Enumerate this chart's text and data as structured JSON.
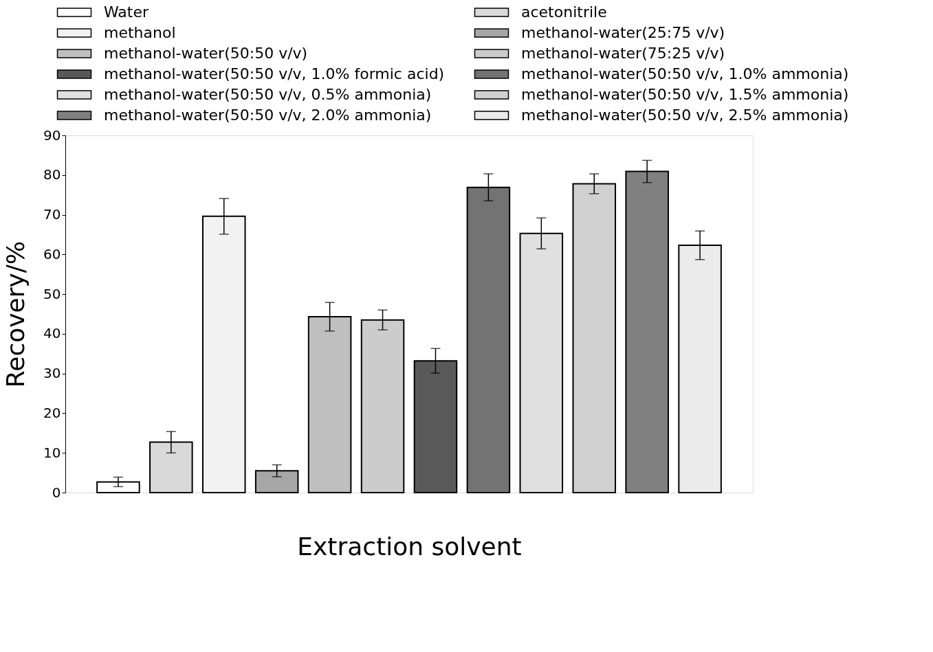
{
  "chart_data": {
    "type": "bar",
    "xlabel": "Extraction solvent",
    "ylabel": "Recovery/%",
    "categories": [
      null,
      null,
      null,
      null,
      null,
      null,
      null,
      null,
      null,
      null,
      null,
      null
    ],
    "series": [
      {
        "name": "Water",
        "color": "#ffffff",
        "values": [
          2.7,
          null,
          null,
          null,
          null,
          null,
          null,
          null,
          null,
          null,
          null,
          null
        ],
        "errors": [
          1.2,
          null,
          null,
          null,
          null,
          null,
          null,
          null,
          null,
          null,
          null,
          null
        ]
      },
      {
        "name": "acetonitrile",
        "color": "#d9d9d9",
        "values": [
          null,
          12.7,
          null,
          null,
          null,
          null,
          null,
          null,
          null,
          null,
          null,
          null
        ],
        "errors": [
          null,
          2.7,
          null,
          null,
          null,
          null,
          null,
          null,
          null,
          null,
          null,
          null
        ]
      },
      {
        "name": "methanol",
        "color": "#f2f2f2",
        "values": [
          null,
          null,
          69.6,
          null,
          null,
          null,
          null,
          null,
          null,
          null,
          null,
          null
        ],
        "errors": [
          null,
          null,
          4.5,
          null,
          null,
          null,
          null,
          null,
          null,
          null,
          null,
          null
        ]
      },
      {
        "name": "methanol-water(25:75 v/v)",
        "color": "#a6a6a6",
        "values": [
          null,
          null,
          null,
          5.5,
          null,
          null,
          null,
          null,
          null,
          null,
          null,
          null
        ],
        "errors": [
          null,
          null,
          null,
          1.5,
          null,
          null,
          null,
          null,
          null,
          null,
          null,
          null
        ]
      },
      {
        "name": "methanol-water(50:50 v/v)",
        "color": "#bfbfbf",
        "values": [
          null,
          null,
          null,
          null,
          44.3,
          null,
          null,
          null,
          null,
          null,
          null,
          null
        ],
        "errors": [
          null,
          null,
          null,
          null,
          3.6,
          null,
          null,
          null,
          null,
          null,
          null,
          null
        ]
      },
      {
        "name": "methanol-water(75:25 v/v)",
        "color": "#cccccc",
        "values": [
          null,
          null,
          null,
          null,
          null,
          43.5,
          null,
          null,
          null,
          null,
          null,
          null
        ],
        "errors": [
          null,
          null,
          null,
          null,
          null,
          2.5,
          null,
          null,
          null,
          null,
          null,
          null
        ]
      },
      {
        "name": "methanol-water(50:50 v/v, 1.0% formic acid)",
        "color": "#595959",
        "values": [
          null,
          null,
          null,
          null,
          null,
          null,
          33.2,
          null,
          null,
          null,
          null,
          null
        ],
        "errors": [
          null,
          null,
          null,
          null,
          null,
          null,
          3.1,
          null,
          null,
          null,
          null,
          null
        ]
      },
      {
        "name": "methanol-water(50:50 v/v, 1.0% ammonia)",
        "color": "#737373",
        "values": [
          null,
          null,
          null,
          null,
          null,
          null,
          null,
          76.9,
          null,
          null,
          null,
          null
        ],
        "errors": [
          null,
          null,
          null,
          null,
          null,
          null,
          null,
          3.4,
          null,
          null,
          null,
          null
        ]
      },
      {
        "name": "methanol-water(50:50 v/v, 0.5% ammonia)",
        "color": "#e0e0e0",
        "values": [
          null,
          null,
          null,
          null,
          null,
          null,
          null,
          null,
          65.3,
          null,
          null,
          null
        ],
        "errors": [
          null,
          null,
          null,
          null,
          null,
          null,
          null,
          null,
          3.9,
          null,
          null,
          null
        ]
      },
      {
        "name": "methanol-water(50:50 v/v, 1.5% ammonia)",
        "color": "#d0d0d0",
        "values": [
          null,
          null,
          null,
          null,
          null,
          null,
          null,
          null,
          null,
          77.8,
          null,
          null
        ],
        "errors": [
          null,
          null,
          null,
          null,
          null,
          null,
          null,
          null,
          null,
          2.5,
          null,
          null
        ]
      },
      {
        "name": "methanol-water(50:50 v/v, 2.0% ammonia)",
        "color": "#808080",
        "values": [
          null,
          null,
          null,
          null,
          null,
          null,
          null,
          null,
          null,
          null,
          80.9,
          null
        ],
        "errors": [
          null,
          null,
          null,
          null,
          null,
          null,
          null,
          null,
          null,
          null,
          2.8,
          null
        ]
      },
      {
        "name": "methanol-water(50:50 v/v, 2.5% ammonia)",
        "color": "#ebebeb",
        "values": [
          null,
          null,
          null,
          null,
          null,
          null,
          null,
          null,
          null,
          null,
          null,
          62.3
        ],
        "errors": [
          null,
          null,
          null,
          null,
          null,
          null,
          null,
          null,
          null,
          null,
          null,
          3.6
        ]
      }
    ],
    "ylim": [
      0,
      90
    ],
    "yticks": [
      0,
      10,
      20,
      30,
      40,
      50,
      60,
      70,
      80,
      90
    ],
    "grid": false,
    "legend": "top"
  }
}
